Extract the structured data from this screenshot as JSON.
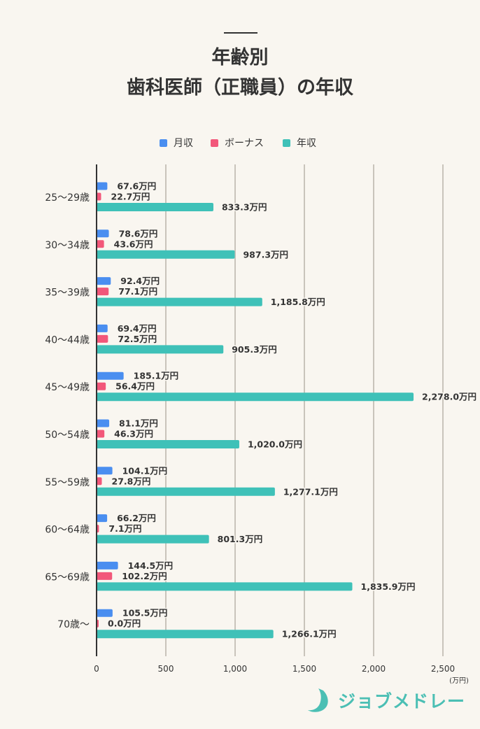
{
  "title": {
    "line1": "年齢別",
    "line2": "歯科医師（正職員）の年収"
  },
  "legend": [
    {
      "label": "月収",
      "color": "#4a8ef0"
    },
    {
      "label": "ボーナス",
      "color": "#f2577a"
    },
    {
      "label": "年収",
      "color": "#3fc1b8"
    }
  ],
  "chart_data": {
    "type": "bar",
    "orientation": "horizontal",
    "categories": [
      "25〜29歳",
      "30〜34歳",
      "35〜39歳",
      "40〜44歳",
      "45〜49歳",
      "50〜54歳",
      "55〜59歳",
      "60〜64歳",
      "65〜69歳",
      "70歳〜"
    ],
    "series": [
      {
        "name": "月収",
        "color": "#4a8ef0",
        "values": [
          67.6,
          78.6,
          92.4,
          69.4,
          185.1,
          81.1,
          104.1,
          66.2,
          144.5,
          105.5
        ],
        "labels": [
          "67.6万円",
          "78.6万円",
          "92.4万円",
          "69.4万円",
          "185.1万円",
          "81.1万円",
          "104.1万円",
          "66.2万円",
          "144.5万円",
          "105.5万円"
        ]
      },
      {
        "name": "ボーナス",
        "color": "#f2577a",
        "values": [
          22.7,
          43.6,
          77.1,
          72.5,
          56.4,
          46.3,
          27.8,
          7.1,
          102.2,
          0.0
        ],
        "labels": [
          "22.7万円",
          "43.6万円",
          "77.1万円",
          "72.5万円",
          "56.4万円",
          "46.3万円",
          "27.8万円",
          "7.1万円",
          "102.2万円",
          "0.0万円"
        ]
      },
      {
        "name": "年収",
        "color": "#3fc1b8",
        "values": [
          833.3,
          987.3,
          1185.8,
          905.3,
          2278.0,
          1020.0,
          1277.1,
          801.3,
          1835.9,
          1266.1
        ],
        "labels": [
          "833.3万円",
          "987.3万円",
          "1,185.8万円",
          "905.3万円",
          "2,278.0万円",
          "1,020.0万円",
          "1,277.1万円",
          "801.3万円",
          "1,835.9万円",
          "1,266.1万円"
        ]
      }
    ],
    "xlim": [
      0,
      2500
    ],
    "xticks": [
      0,
      500,
      1000,
      1500,
      2000,
      2500
    ],
    "xtick_labels": [
      "0",
      "500",
      "1,000",
      "1,500",
      "2,000",
      "2,500"
    ],
    "unit_label": "(万円)",
    "grid": true,
    "legend_position": "top-center"
  },
  "logo": {
    "text": "ジョブメドレー",
    "icon": "medley-swoosh-icon",
    "color": "#4bbfb4"
  }
}
